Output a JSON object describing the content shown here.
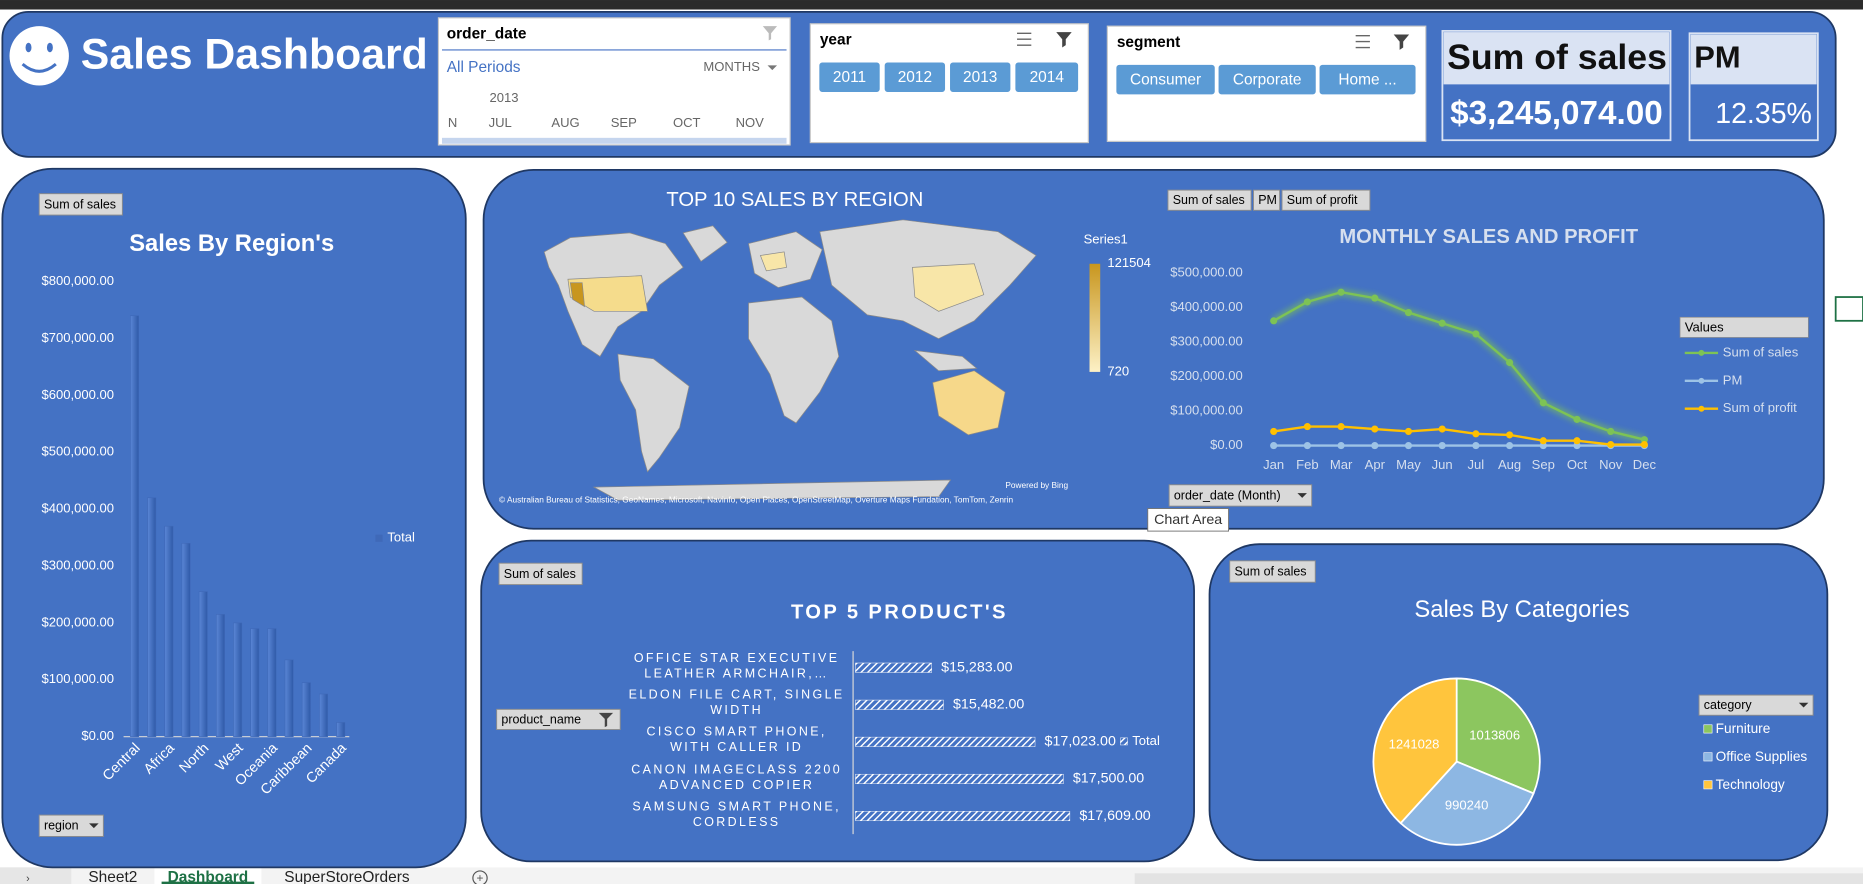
{
  "header": {
    "title": "Sales Dashboard"
  },
  "slicers": {
    "order_date": {
      "title": "order_date",
      "selection": "All Periods",
      "level": "MONTHS",
      "year": "2013",
      "months": [
        "N",
        "JUL",
        "AUG",
        "SEP",
        "OCT",
        "NOV"
      ]
    },
    "year": {
      "title": "year",
      "items": [
        "2011",
        "2012",
        "2013",
        "2014"
      ]
    },
    "segment": {
      "title": "segment",
      "items": [
        "Consumer",
        "Corporate",
        "Home ..."
      ]
    }
  },
  "kpis": [
    {
      "label": "Sum of sales",
      "value": "$3,245,074.00"
    },
    {
      "label": "PM",
      "value": "12.35%"
    }
  ],
  "chart_data": [
    {
      "type": "bar",
      "field_button": "Sum of sales",
      "title": "Sales By Region's",
      "filter_button": "region",
      "legend": "Total",
      "categories": [
        "Central",
        null,
        "Africa",
        null,
        "North",
        null,
        "West",
        null,
        "Oceania",
        null,
        "Caribbean",
        null,
        "Canada"
      ],
      "values": [
        740000,
        420000,
        370000,
        340000,
        255000,
        215000,
        200000,
        190000,
        190000,
        135000,
        95000,
        75000,
        25000
      ],
      "color": "#3f69b8",
      "grid": false,
      "ylim": [
        0,
        800000
      ],
      "yticks": [
        {
          "value": 0,
          "label": "$0.00"
        },
        {
          "value": 100000,
          "label": "$100,000.00"
        },
        {
          "value": 200000,
          "label": "$200,000.00"
        },
        {
          "value": 300000,
          "label": "$300,000.00"
        },
        {
          "value": 400000,
          "label": "$400,000.00"
        },
        {
          "value": 500000,
          "label": "$500,000.00"
        },
        {
          "value": 600000,
          "label": "$600,000.00"
        },
        {
          "value": 700000,
          "label": "$700,000.00"
        },
        {
          "value": 800000,
          "label": "$800,000.00"
        }
      ]
    },
    {
      "type": "map",
      "title": "TOP 10 SALES BY REGION",
      "legend_title": "Series1",
      "scale_max": 121504,
      "scale_min": 720,
      "scale_colors": [
        "#c8961e",
        "#fdf1c6"
      ],
      "credit": "Powered by Bing",
      "attribution": "© Australian Bureau of Statistics, GeoNames, Microsoft, Navinfo, Open Places, OpenStreetMap, Overture Maps Fundation, TomTom, Zenrin"
    },
    {
      "type": "line",
      "field_buttons": [
        "Sum of sales",
        "PM",
        "Sum of profit"
      ],
      "title": "MONTHLY SALES AND PROFIT",
      "legend_title": "Values",
      "filter_button": "order_date (Month)",
      "categories": [
        "Jan",
        "Feb",
        "Mar",
        "Apr",
        "May",
        "Jun",
        "Jul",
        "Aug",
        "Sep",
        "Oct",
        "Nov",
        "Dec"
      ],
      "series": [
        {
          "name": "Sum of sales",
          "color": "#7dc355",
          "values": [
            362000,
            417000,
            445000,
            428000,
            386000,
            355000,
            324000,
            241000,
            124000,
            76000,
            41000,
            17000
          ]
        },
        {
          "name": "PM",
          "color": "#9dc3e6",
          "values": [
            0,
            0,
            0,
            0,
            0,
            0,
            0,
            0,
            0,
            0,
            0,
            0
          ]
        },
        {
          "name": "Sum of profit",
          "color": "#ffc000",
          "values": [
            41000,
            55000,
            55000,
            48000,
            41000,
            48000,
            34000,
            31000,
            14000,
            14000,
            3000,
            3000
          ]
        }
      ],
      "grid": false,
      "ylim": [
        0,
        500000
      ],
      "yticks": [
        {
          "value": 0,
          "label": "$0.00"
        },
        {
          "value": 100000,
          "label": "$100,000.00"
        },
        {
          "value": 200000,
          "label": "$200,000.00"
        },
        {
          "value": 300000,
          "label": "$300,000.00"
        },
        {
          "value": 400000,
          "label": "$400,000.00"
        },
        {
          "value": 500000,
          "label": "$500,000.00"
        }
      ]
    },
    {
      "type": "hbar",
      "field_button": "Sum of sales",
      "title": "TOP 5 PRODUCT'S",
      "filter_button": "product_name",
      "legend": "Total",
      "categories": [
        "OFFICE STAR EXECUTIVE LEATHER ARMCHAIR,…",
        "ELDON FILE CART, SINGLE WIDTH",
        "CISCO SMART PHONE, WITH CALLER ID",
        "CANON IMAGECLASS 2200 ADVANCED COPIER",
        "SAMSUNG SMART PHONE, CORDLESS"
      ],
      "values": [
        15283,
        15482,
        17023,
        17500,
        17609
      ],
      "value_labels": [
        "$15,283.00",
        "$15,482.00",
        "$17,023.00",
        "$17,500.00",
        "$17,609.00"
      ],
      "xlim": [
        14000,
        18000
      ]
    },
    {
      "type": "pie",
      "field_button": "Sum of sales",
      "title": "Sales By Categories",
      "filter_button": "category",
      "categories": [
        "Furniture",
        "Office Supplies",
        "Technology"
      ],
      "values": [
        1013806,
        990240,
        1241028
      ],
      "colors": [
        "#8cc65f",
        "#8db7e3",
        "#ffc53d"
      ]
    }
  ],
  "tooltip": "Chart Area",
  "sheet_tabs": [
    "Sheet2",
    "Dashboard",
    "SuperStoreOrders"
  ]
}
